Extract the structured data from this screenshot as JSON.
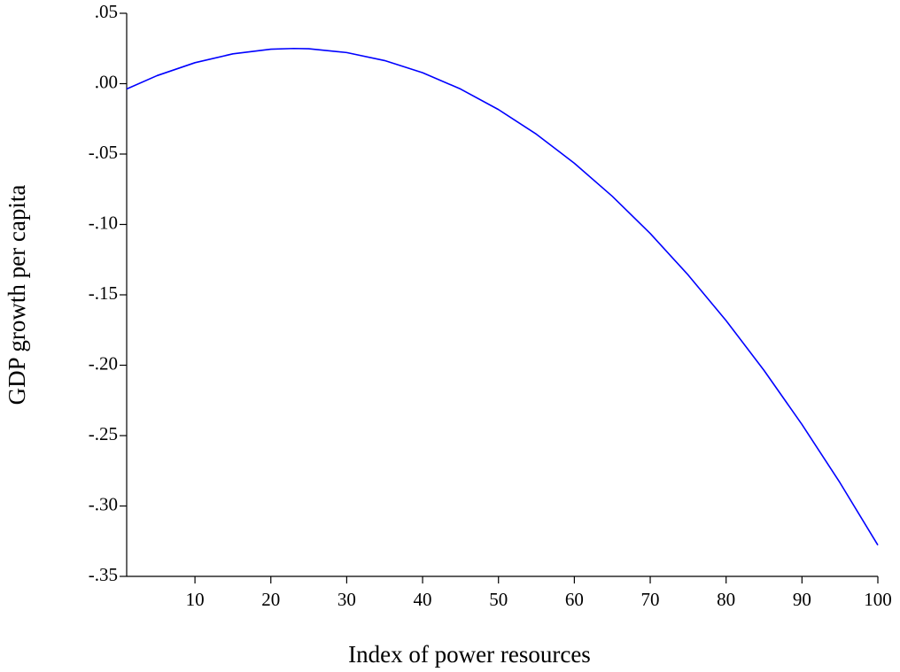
{
  "chart_data": {
    "type": "line",
    "x_label": "Index of power resources",
    "y_label": "GDP growth per capita",
    "x": [
      1,
      5,
      10,
      15,
      20,
      23,
      25,
      30,
      35,
      40,
      45,
      50,
      55,
      60,
      65,
      70,
      75,
      80,
      85,
      90,
      95,
      100
    ],
    "series": [
      {
        "color": "#0000ff",
        "values": [
          -0.0038,
          0.0057,
          0.0149,
          0.0212,
          0.0245,
          0.025,
          0.0248,
          0.0221,
          0.0164,
          0.0078,
          -0.0038,
          -0.0184,
          -0.0359,
          -0.0565,
          -0.08,
          -0.1064,
          -0.1359,
          -0.1683,
          -0.2037,
          -0.2421,
          -0.2834,
          -0.3278
        ]
      }
    ],
    "xlim": [
      1,
      100
    ],
    "xticks": [
      10,
      20,
      30,
      40,
      50,
      60,
      70,
      80,
      90,
      100
    ],
    "ylim": [
      -0.35,
      0.05
    ],
    "yticks": [
      {
        "value": -0.35,
        "label": "-.35"
      },
      {
        "value": -0.3,
        "label": "-.30"
      },
      {
        "value": -0.25,
        "label": "-.25"
      },
      {
        "value": -0.2,
        "label": "-.20"
      },
      {
        "value": -0.15,
        "label": "-.15"
      },
      {
        "value": -0.1,
        "label": "-.10"
      },
      {
        "value": -0.05,
        "label": "-.05"
      },
      {
        "value": 0,
        "label": ".00"
      },
      {
        "value": 0.05,
        "label": ".05"
      }
    ],
    "grid": false
  }
}
